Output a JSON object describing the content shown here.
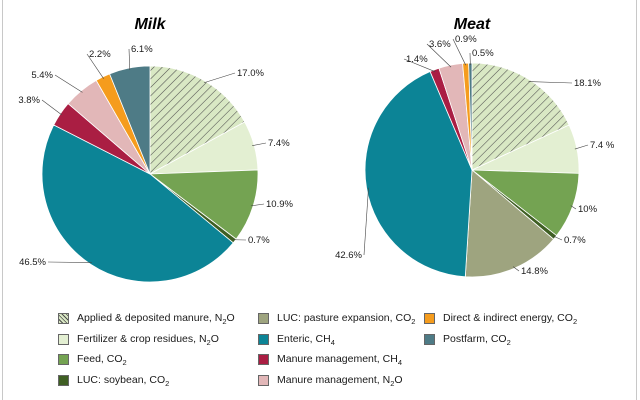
{
  "chart_data": [
    {
      "type": "pie",
      "title": "Milk",
      "series": [
        {
          "key": "applied",
          "value": 17.0,
          "label": "17.0%"
        },
        {
          "key": "fertilizer",
          "value": 7.4,
          "label": "7.4%"
        },
        {
          "key": "feed",
          "value": 10.9,
          "label": "10.9%"
        },
        {
          "key": "soybean",
          "value": 0.7,
          "label": "0.7%"
        },
        {
          "key": "luc_pasture",
          "value": 0.0,
          "label": ""
        },
        {
          "key": "enteric",
          "value": 46.5,
          "label": "46.5%"
        },
        {
          "key": "manure_ch4",
          "value": 3.8,
          "label": "3.8%"
        },
        {
          "key": "manure_n2o",
          "value": 5.4,
          "label": "5.4%"
        },
        {
          "key": "energy",
          "value": 2.2,
          "label": "2.2%"
        },
        {
          "key": "postfarm",
          "value": 6.1,
          "label": "6.1%"
        }
      ]
    },
    {
      "type": "pie",
      "title": "Meat",
      "series": [
        {
          "key": "applied",
          "value": 18.1,
          "label": "18.1%"
        },
        {
          "key": "fertilizer",
          "value": 7.4,
          "label": "7.4 %"
        },
        {
          "key": "feed",
          "value": 10.0,
          "label": "10%"
        },
        {
          "key": "soybean",
          "value": 0.7,
          "label": "0.7%"
        },
        {
          "key": "luc_pasture",
          "value": 14.8,
          "label": "14.8%"
        },
        {
          "key": "enteric",
          "value": 42.6,
          "label": "42.6%"
        },
        {
          "key": "manure_ch4",
          "value": 1.4,
          "label": "1.4%"
        },
        {
          "key": "manure_n2o",
          "value": 3.6,
          "label": "3.6%"
        },
        {
          "key": "energy",
          "value": 0.9,
          "label": "0.9%"
        },
        {
          "key": "postfarm",
          "value": 0.5,
          "label": "0.5%"
        }
      ]
    }
  ],
  "categories": {
    "applied": {
      "color": "#d9e8c4",
      "hatch": true
    },
    "fertilizer": {
      "color": "#e3efd2"
    },
    "feed": {
      "color": "#74a352"
    },
    "soybean": {
      "color": "#3f5f23"
    },
    "luc_pasture": {
      "color": "#9ea47f"
    },
    "enteric": {
      "color": "#0c8496"
    },
    "manure_ch4": {
      "color": "#aa1e43"
    },
    "manure_n2o": {
      "color": "#e2b7b8"
    },
    "energy": {
      "color": "#f59c1d"
    },
    "postfarm": {
      "color": "#4e7b86"
    }
  },
  "legend": {
    "applied": {
      "text": "Applied & deposited manure, N",
      "sub": "2",
      "tail": "O"
    },
    "fertilizer": {
      "text": "Fertilizer & crop residues, N",
      "sub": "2",
      "tail": "O"
    },
    "feed": {
      "text": "Feed, CO",
      "sub": "2",
      "tail": ""
    },
    "soybean": {
      "text": "LUC: soybean, CO",
      "sub": "2",
      "tail": ""
    },
    "luc_pasture": {
      "text": "LUC: pasture expansion, CO",
      "sub": "2",
      "tail": ""
    },
    "enteric": {
      "text": "Enteric, CH",
      "sub": "4",
      "tail": ""
    },
    "manure_ch4": {
      "text": "Manure management, CH",
      "sub": "4",
      "tail": ""
    },
    "manure_n2o": {
      "text": "Manure management, N",
      "sub": "2",
      "tail": "O"
    },
    "energy": {
      "text": "Direct & indirect energy, CO",
      "sub": "2",
      "tail": ""
    },
    "postfarm": {
      "text": "Postfarm, CO",
      "sub": "2",
      "tail": ""
    }
  }
}
